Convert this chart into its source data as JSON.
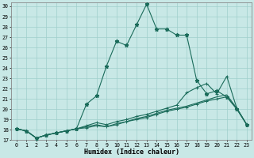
{
  "xlabel": "Humidex (Indice chaleur)",
  "xlim": [
    -0.5,
    23.5
  ],
  "ylim": [
    17,
    30.4
  ],
  "yticks": [
    17,
    18,
    19,
    20,
    21,
    22,
    23,
    24,
    25,
    26,
    27,
    28,
    29,
    30
  ],
  "xticks": [
    0,
    1,
    2,
    3,
    4,
    5,
    6,
    7,
    8,
    9,
    10,
    11,
    12,
    13,
    14,
    15,
    16,
    17,
    18,
    19,
    20,
    21,
    22,
    23
  ],
  "bg_color": "#c8e8e6",
  "grid_color": "#9fcfcc",
  "line_color": "#1a6b5a",
  "line1_y": [
    18.1,
    17.9,
    17.2,
    17.5,
    17.7,
    17.9,
    18.1,
    20.5,
    21.3,
    24.2,
    26.6,
    26.2,
    28.2,
    30.2,
    27.8,
    27.8,
    27.2,
    27.2,
    22.8,
    21.5,
    21.8,
    21.2,
    20.0,
    18.5
  ],
  "line2_y": [
    18.1,
    17.9,
    17.2,
    17.5,
    17.7,
    17.9,
    18.1,
    18.4,
    18.7,
    18.5,
    18.8,
    19.0,
    19.3,
    19.5,
    19.8,
    20.1,
    20.4,
    21.6,
    22.1,
    22.5,
    21.5,
    23.2,
    20.1,
    18.5
  ],
  "line3_y": [
    18.1,
    17.9,
    17.2,
    17.5,
    17.7,
    17.9,
    18.1,
    18.3,
    18.5,
    18.3,
    18.6,
    18.8,
    19.1,
    19.3,
    19.6,
    19.9,
    20.1,
    20.3,
    20.6,
    20.9,
    21.2,
    21.4,
    20.1,
    18.5
  ],
  "line4_y": [
    18.1,
    17.9,
    17.2,
    17.5,
    17.7,
    17.9,
    18.1,
    18.2,
    18.4,
    18.3,
    18.5,
    18.8,
    19.0,
    19.2,
    19.5,
    19.8,
    20.0,
    20.2,
    20.5,
    20.8,
    21.0,
    21.2,
    20.1,
    18.5
  ]
}
